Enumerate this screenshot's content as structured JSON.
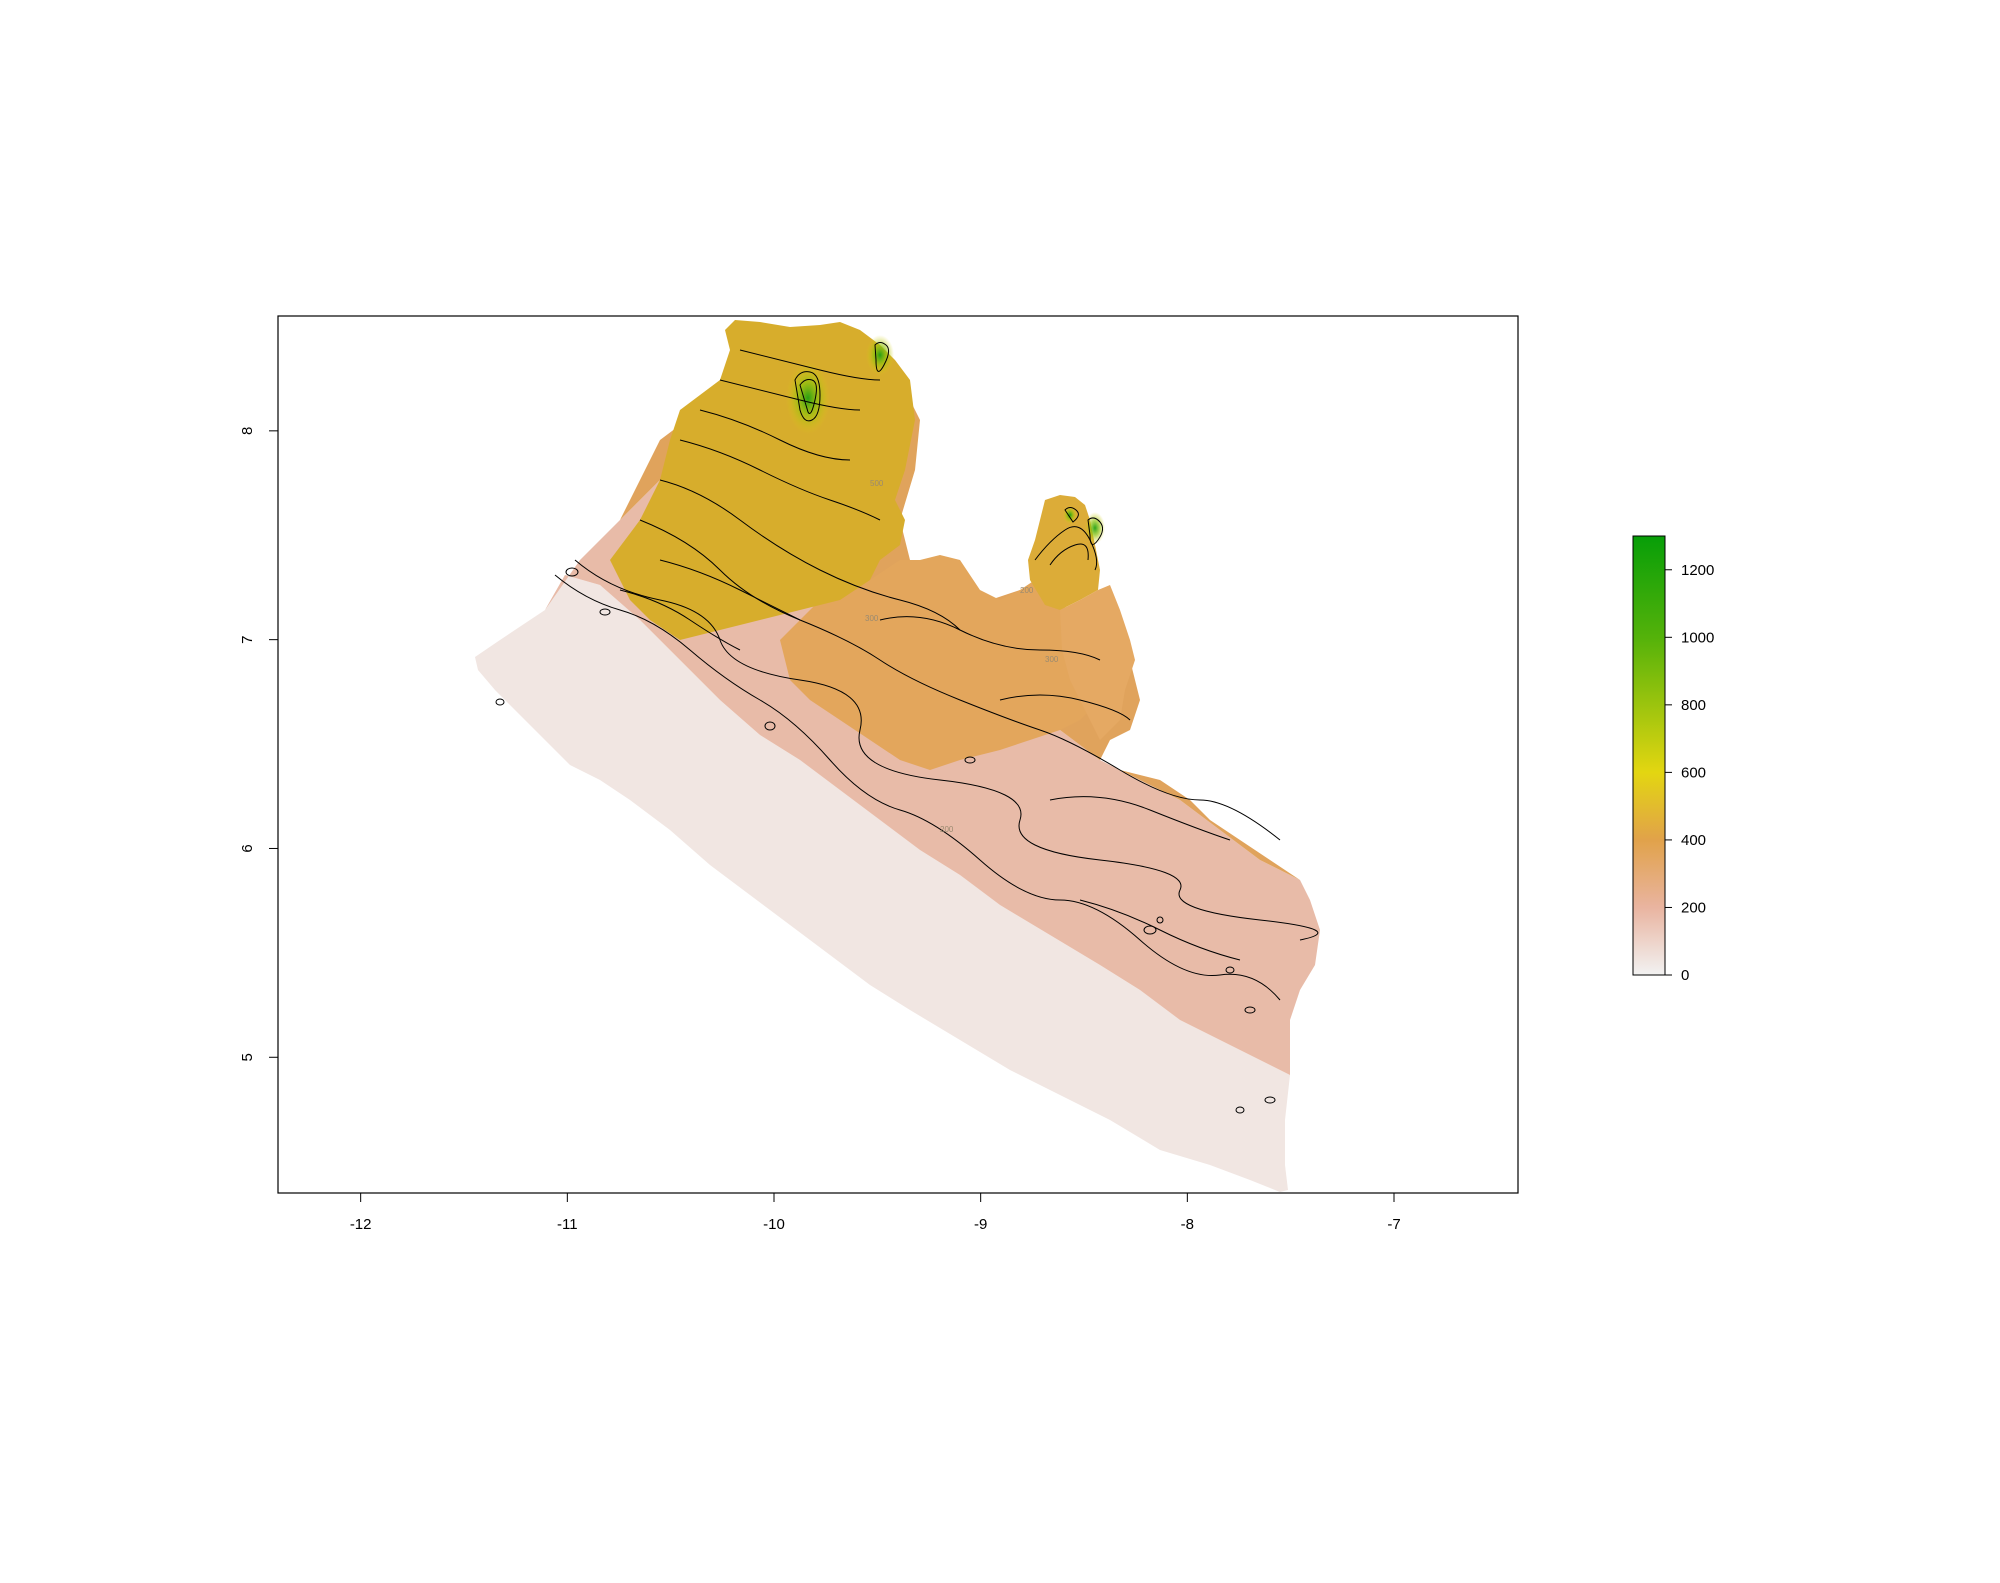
{
  "chart_data": {
    "type": "heatmap",
    "subject": "elevation raster with contour lines",
    "title": "",
    "xlabel": "",
    "ylabel": "",
    "xlim": [
      -12.4,
      -6.4
    ],
    "ylim": [
      4.35,
      8.55
    ],
    "x_ticks": [
      -12,
      -11,
      -10,
      -9,
      -8,
      -7
    ],
    "x_tick_labels": [
      "-12",
      "-11",
      "-10",
      "-9",
      "-8",
      "-7"
    ],
    "y_ticks": [
      5,
      6,
      7,
      8
    ],
    "y_tick_labels": [
      "5",
      "6",
      "7",
      "8"
    ],
    "legend": {
      "type": "colorbar",
      "position": "right",
      "min": 0,
      "max": 1300,
      "ticks": [
        0,
        200,
        400,
        600,
        800,
        1000,
        1200
      ],
      "tick_labels": [
        "0",
        "200",
        "400",
        "600",
        "800",
        "1000",
        "1200"
      ],
      "color_stops": [
        {
          "value": 0,
          "color": "#f2f2f2"
        },
        {
          "value": 200,
          "color": "#e9b4a0"
        },
        {
          "value": 400,
          "color": "#e1a24a"
        },
        {
          "value": 600,
          "color": "#e3d611"
        },
        {
          "value": 1000,
          "color": "#54b20a"
        },
        {
          "value": 1300,
          "color": "#079e08"
        }
      ]
    },
    "contour_levels": [
      100,
      200,
      300,
      400,
      500,
      600,
      700,
      800,
      900,
      1000,
      1100,
      1200
    ],
    "contour_labels_visible": [
      "300",
      "300",
      "200",
      "200",
      "500"
    ],
    "colors": {
      "contour_line": "#000000",
      "contour_label": "#9a8a70",
      "low": "#f2f2f2",
      "mid_low": "#e9b4a0",
      "mid": "#e1a24a",
      "high": "#e3d611",
      "peak": "#079e08"
    }
  }
}
